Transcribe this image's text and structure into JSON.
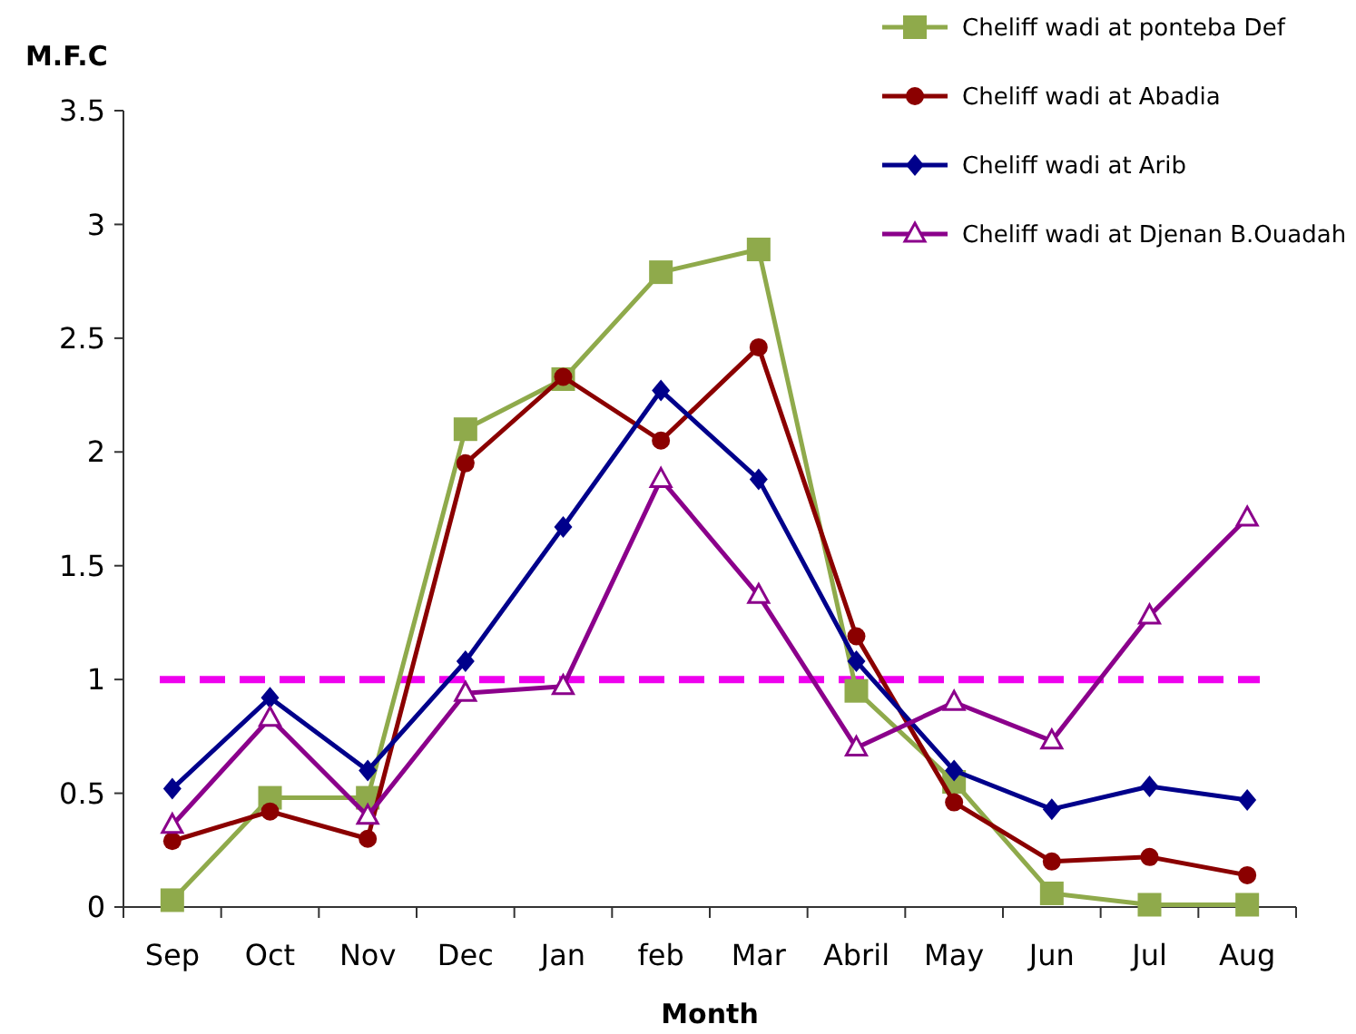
{
  "chart_data": {
    "type": "line",
    "ylabel": "M.F.C",
    "xlabel": "Month",
    "categories": [
      "Sep",
      "Oct",
      "Nov",
      "Dec",
      "Jan",
      "feb",
      "Mar",
      "Abril",
      "May",
      "Jun",
      "Jul",
      "Aug"
    ],
    "ylim": [
      0,
      3.5
    ],
    "yticks": [
      0,
      0.5,
      1,
      1.5,
      2,
      2.5,
      3,
      3.5
    ],
    "grid": false,
    "legend": "top right",
    "series": [
      {
        "name": "Cheliff wadi at ponteba Def",
        "color": "#8faa4b",
        "marker": "square",
        "values": [
          0.03,
          0.48,
          0.48,
          2.1,
          2.32,
          2.79,
          2.89,
          0.95,
          0.55,
          0.06,
          0.01,
          0.01
        ]
      },
      {
        "name": "Cheliff wadi at Abadia",
        "color": "#8b0000",
        "marker": "circle",
        "values": [
          0.29,
          0.42,
          0.3,
          1.95,
          2.33,
          2.05,
          2.46,
          1.19,
          0.46,
          0.2,
          0.22,
          0.14
        ]
      },
      {
        "name": "Cheliff wadi at Arib",
        "color": "#00008b",
        "marker": "diamond",
        "values": [
          0.52,
          0.92,
          0.6,
          1.08,
          1.67,
          2.27,
          1.88,
          1.08,
          0.6,
          0.43,
          0.53,
          0.47
        ]
      },
      {
        "name": "Cheliff wadi at Djenan B.Ouadah",
        "color": "#8b008b",
        "marker": "triangle",
        "values": [
          0.36,
          0.83,
          0.4,
          0.94,
          0.97,
          1.88,
          1.37,
          0.7,
          0.9,
          0.73,
          1.28,
          1.71
        ]
      }
    ],
    "ref_lines": [
      {
        "axis": "y",
        "value": 1,
        "color": "#ee00ee",
        "line_style": "dashed"
      }
    ]
  }
}
